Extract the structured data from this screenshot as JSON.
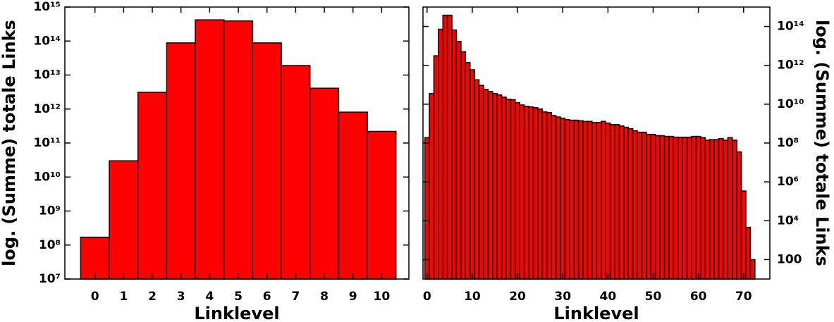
{
  "chart_data": [
    {
      "type": "bar",
      "xlabel": "Linklevel",
      "ylabel": "log. (Summe) totale Links",
      "color": "#ff0000",
      "log_y": true,
      "yaxis_side": "left",
      "x": [
        0,
        1,
        2,
        3,
        4,
        5,
        6,
        7,
        8,
        9,
        10
      ],
      "values": [
        170000000.0,
        30000000000.0,
        3100000000000.0,
        88000000000000.0,
        420000000000000.0,
        390000000000000.0,
        88000000000000.0,
        19000000000000.0,
        4100000000000.0,
        810000000000.0,
        220000000000.0
      ],
      "xlim": [
        -1.05,
        10.95
      ],
      "xticks": [
        0,
        1,
        2,
        3,
        4,
        5,
        6,
        7,
        8,
        9,
        10
      ],
      "ylim": [
        10000000.0,
        1000000000000000.0
      ],
      "yticks": [
        {
          "value": 10000000.0,
          "label": "10⁷"
        },
        {
          "value": 100000000.0,
          "label": "10⁸"
        },
        {
          "value": 1000000000.0,
          "label": "10⁹"
        },
        {
          "value": 10000000000.0,
          "label": "10¹⁰"
        },
        {
          "value": 100000000000.0,
          "label": "10¹¹"
        },
        {
          "value": 1000000000000.0,
          "label": "10¹²"
        },
        {
          "value": 10000000000000.0,
          "label": "10¹³"
        },
        {
          "value": 100000000000000.0,
          "label": "10¹⁴"
        },
        {
          "value": 1000000000000000.0,
          "label": "10¹⁵"
        }
      ]
    },
    {
      "type": "bar",
      "xlabel": "Linklevel",
      "ylabel": "log. (Summe) totale Links",
      "color": "#ff0000",
      "log_y": true,
      "yaxis_side": "right",
      "x": [
        0,
        1,
        2,
        3,
        4,
        5,
        6,
        7,
        8,
        9,
        10,
        11,
        12,
        13,
        14,
        15,
        16,
        17,
        18,
        19,
        20,
        21,
        22,
        23,
        24,
        25,
        26,
        27,
        28,
        29,
        30,
        31,
        32,
        33,
        34,
        35,
        36,
        37,
        38,
        39,
        40,
        41,
        42,
        43,
        44,
        45,
        46,
        47,
        48,
        49,
        50,
        51,
        52,
        53,
        54,
        55,
        56,
        57,
        58,
        59,
        60,
        61,
        62,
        63,
        64,
        65,
        66,
        67,
        68,
        69,
        70,
        71,
        72
      ],
      "values": [
        190000000.0,
        35000000000.0,
        3100000000000.0,
        72000000000000.0,
        380000000000000.0,
        380000000000000.0,
        66000000000000.0,
        17000000000000.0,
        5000000000000.0,
        1400000000000.0,
        590000000000.0,
        180000000000.0,
        93000000000.0,
        58000000000.0,
        45000000000.0,
        35000000000.0,
        30000000000.0,
        23000000000.0,
        18000000000.0,
        17000000000.0,
        12000000000.0,
        9100000000.0,
        7800000000.0,
        7200000000.0,
        6600000000.0,
        5600000000.0,
        4000000000.0,
        3700000000.0,
        2600000000.0,
        2200000000.0,
        1900000000.0,
        1600000000.0,
        1500000000.0,
        1500000000.0,
        1400000000.0,
        1300000000.0,
        1300000000.0,
        1150000000.0,
        1150000000.0,
        1300000000.0,
        1070000000.0,
        890000000.0,
        890000000.0,
        760000000.0,
        650000000.0,
        550000000.0,
        430000000.0,
        360000000.0,
        360000000.0,
        280000000.0,
        280000000.0,
        240000000.0,
        240000000.0,
        220000000.0,
        220000000.0,
        200000000.0,
        200000000.0,
        200000000.0,
        200000000.0,
        220000000.0,
        220000000.0,
        190000000.0,
        140000000.0,
        150000000.0,
        150000000.0,
        170000000.0,
        140000000.0,
        190000000.0,
        140000000.0,
        35000000.0,
        340000.0,
        4600.0,
        100
      ],
      "xlim": [
        -0.9,
        75.8
      ],
      "xticks": [
        0,
        10,
        20,
        30,
        40,
        50,
        60,
        70
      ],
      "ylim": [
        10,
        1000000000000000.0
      ],
      "yticks": [
        100,
        {
          "value": 10000.0,
          "label": "10⁴"
        },
        {
          "value": 1000000.0,
          "label": "10⁶"
        },
        {
          "value": 100000000.0,
          "label": "10⁸"
        },
        {
          "value": 10000000000.0,
          "label": "10¹⁰"
        },
        {
          "value": 1000000000000.0,
          "label": "10¹²"
        },
        {
          "value": 100000000000000.0,
          "label": "10¹⁴"
        }
      ]
    }
  ]
}
